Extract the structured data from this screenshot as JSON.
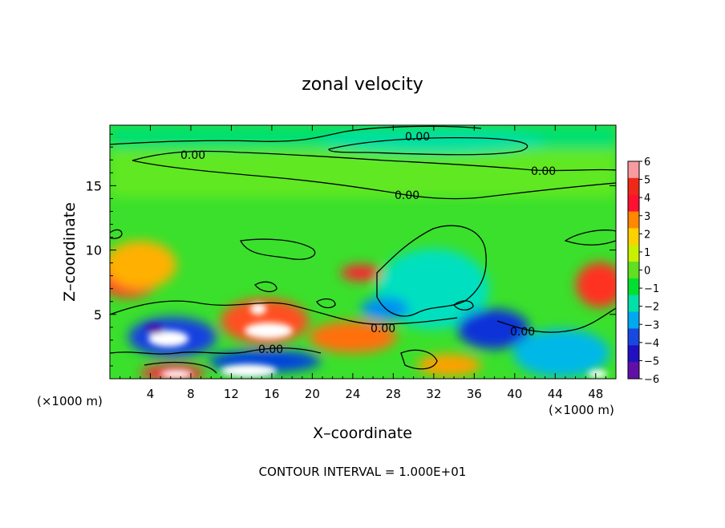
{
  "chart_data": {
    "type": "heatmap",
    "title": "zonal velocity",
    "xlabel": "X–coordinate",
    "ylabel": "Z–coordinate",
    "x_unit_label": "(×1000 m)",
    "footer": "CONTOUR INTERVAL = 1.000E+01",
    "xlim": [
      0,
      50
    ],
    "ylim": [
      0,
      19.7
    ],
    "x_ticks": [
      "4",
      "8",
      "12",
      "16",
      "20",
      "24",
      "28",
      "32",
      "36",
      "40",
      "44",
      "48"
    ],
    "y_ticks": [
      "5",
      "10",
      "15"
    ],
    "colorbar": {
      "range": [
        -6,
        6
      ],
      "ticks": [
        "6",
        "5",
        "4",
        "3",
        "2",
        "1",
        "0",
        "−1",
        "−2",
        "−3",
        "−4",
        "−5",
        "−6"
      ],
      "colors": [
        "#f89aa0",
        "#f02818",
        "#ff1030",
        "#ff8800",
        "#ffd000",
        "#c8f000",
        "#60e020",
        "#00e030",
        "#00e0a8",
        "#00a8f0",
        "#1848e0",
        "#2010c0",
        "#6010a8"
      ]
    },
    "contour_labels": [
      "0.00",
      "0.00",
      "0.00",
      "0.00",
      "0.00",
      "0.00",
      "0.00"
    ]
  }
}
